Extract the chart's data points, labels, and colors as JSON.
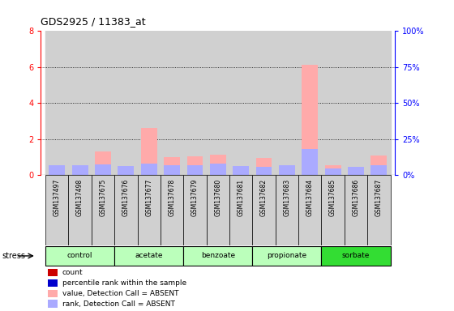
{
  "title": "GDS2925 / 11383_at",
  "samples": [
    "GSM137497",
    "GSM137498",
    "GSM137675",
    "GSM137676",
    "GSM137677",
    "GSM137678",
    "GSM137679",
    "GSM137680",
    "GSM137681",
    "GSM137682",
    "GSM137683",
    "GSM137684",
    "GSM137685",
    "GSM137686",
    "GSM137687"
  ],
  "value_absent": [
    0.35,
    0.35,
    1.3,
    0.25,
    2.6,
    1.0,
    1.05,
    1.15,
    0.45,
    0.95,
    0.45,
    6.15,
    0.55,
    0.25,
    1.1
  ],
  "rank_absent": [
    0.55,
    0.55,
    0.6,
    0.5,
    0.65,
    0.55,
    0.55,
    0.65,
    0.5,
    0.45,
    0.55,
    1.45,
    0.35,
    0.45,
    0.55
  ],
  "count_present": [
    0,
    0,
    0,
    0,
    0,
    0,
    0,
    0,
    0,
    0,
    0,
    0,
    0,
    0,
    0
  ],
  "percentile_present": [
    0,
    0,
    0,
    0,
    0,
    0,
    0,
    0,
    0,
    0,
    0,
    0,
    0,
    0,
    0
  ],
  "ylim_left": [
    0,
    8
  ],
  "ylim_right": [
    0,
    100
  ],
  "yticks_left": [
    0,
    2,
    4,
    6,
    8
  ],
  "yticks_right": [
    0,
    25,
    50,
    75,
    100
  ],
  "ytick_labels_right": [
    "0%",
    "25%",
    "50%",
    "75%",
    "100%"
  ],
  "bar_color_value_absent": "#ffaaaa",
  "bar_color_rank_absent": "#aaaaff",
  "bar_color_count": "#cc0000",
  "bar_color_percentile": "#0000cc",
  "bar_bg_color": "#d0d0d0",
  "legend_items": [
    {
      "color": "#cc0000",
      "label": "count"
    },
    {
      "color": "#0000cc",
      "label": "percentile rank within the sample"
    },
    {
      "color": "#ffaaaa",
      "label": "value, Detection Call = ABSENT"
    },
    {
      "color": "#aaaaff",
      "label": "rank, Detection Call = ABSENT"
    }
  ],
  "stress_label": "stress",
  "group_spans": [
    {
      "name": "control",
      "start": 0,
      "end": 2,
      "color": "#bbffbb"
    },
    {
      "name": "acetate",
      "start": 3,
      "end": 5,
      "color": "#bbffbb"
    },
    {
      "name": "benzoate",
      "start": 6,
      "end": 8,
      "color": "#bbffbb"
    },
    {
      "name": "propionate",
      "start": 9,
      "end": 11,
      "color": "#bbffbb"
    },
    {
      "name": "sorbate",
      "start": 12,
      "end": 14,
      "color": "#33dd33"
    }
  ]
}
